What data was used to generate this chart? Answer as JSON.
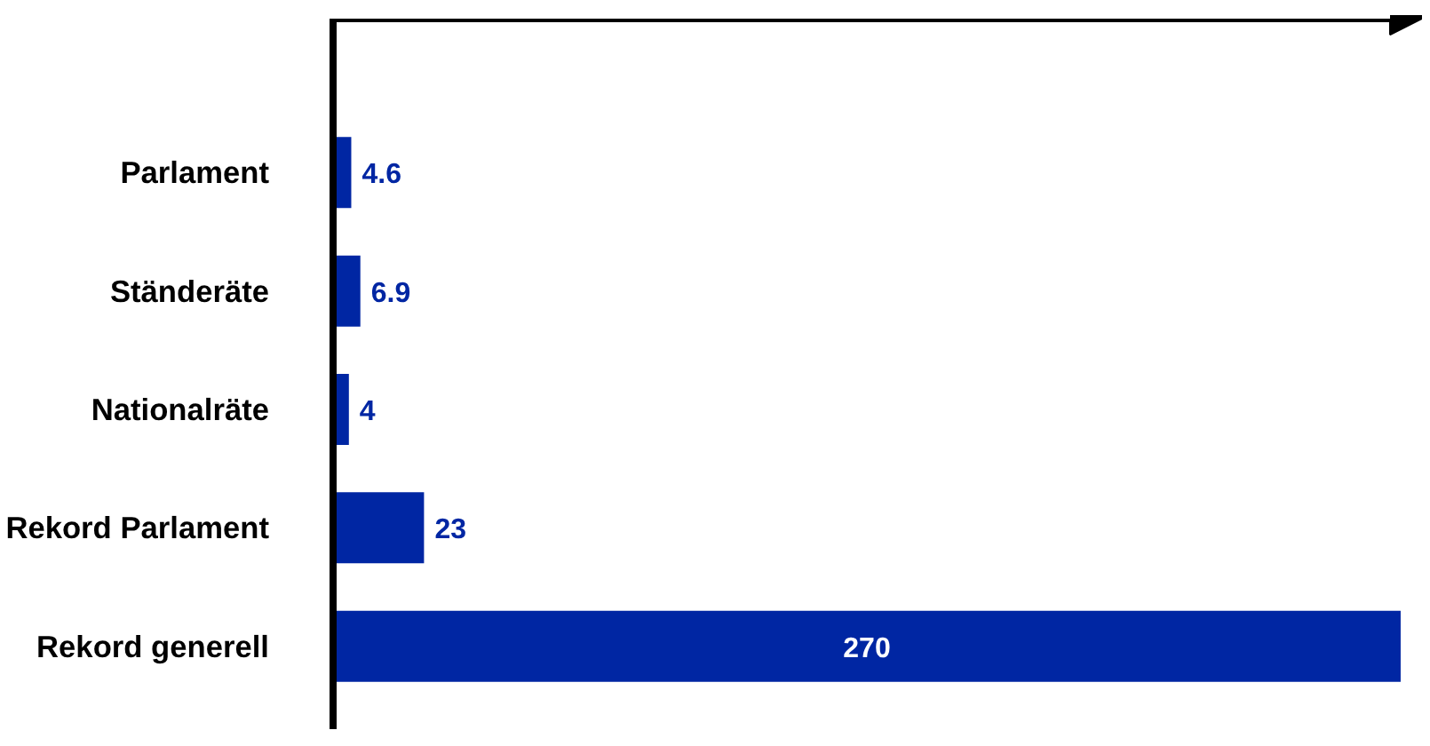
{
  "chart_data": {
    "type": "bar",
    "orientation": "horizontal",
    "categories": [
      "Parlament",
      "Ständeräte",
      "Nationalräte",
      "Rekord Parlament",
      "Rekord generell"
    ],
    "values": [
      4.6,
      6.9,
      4,
      23,
      270
    ],
    "color": "#0026a3",
    "data_labels": true,
    "tick_labels": "y",
    "grid": false
  }
}
